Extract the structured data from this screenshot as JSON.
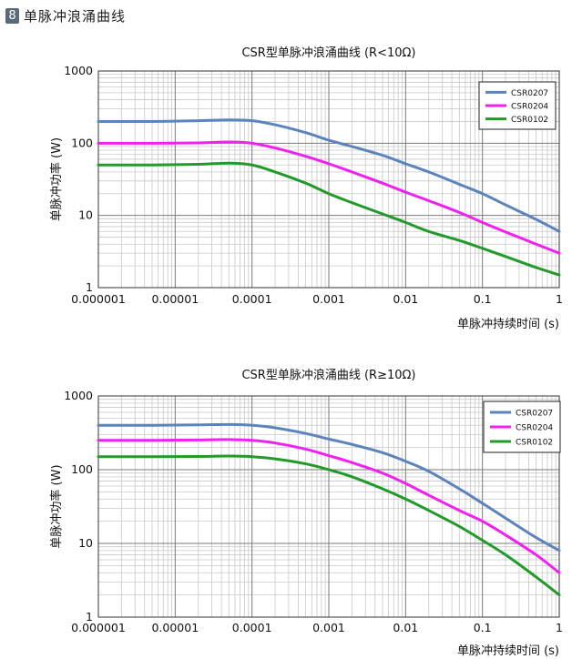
{
  "section": {
    "number": "8",
    "title": "单脉冲浪涌曲线"
  },
  "chart_data": [
    {
      "type": "line",
      "title": "CSR型单脉冲浪涌曲线 (R<10Ω)",
      "xlabel": "单脉冲持续时间 (s)",
      "ylabel": "单脉冲功率 (W)",
      "xscale": "log",
      "yscale": "log",
      "xlim": [
        1e-06,
        1
      ],
      "ylim": [
        1,
        1000
      ],
      "x_ticks": [
        "0.000001",
        "0.00001",
        "0.0001",
        "0.001",
        "0.01",
        "0.1",
        "1"
      ],
      "y_ticks": [
        "1",
        "10",
        "100",
        "1000"
      ],
      "grid": true,
      "legend_position": "top-right",
      "series": [
        {
          "name": "CSR0207",
          "color": "#5b84bd",
          "x": [
            1e-06,
            5e-06,
            2e-05,
            5e-05,
            0.0001,
            0.0002,
            0.0005,
            0.001,
            0.002,
            0.005,
            0.01,
            0.02,
            0.05,
            0.1,
            0.2,
            0.5,
            1
          ],
          "y": [
            200,
            200,
            205,
            210,
            205,
            180,
            140,
            110,
            90,
            68,
            52,
            40,
            27,
            20,
            14,
            8.8,
            6
          ]
        },
        {
          "name": "CSR0204",
          "color": "#f021f0",
          "x": [
            1e-06,
            5e-06,
            2e-05,
            5e-05,
            0.0001,
            0.0002,
            0.0005,
            0.001,
            0.002,
            0.005,
            0.01,
            0.02,
            0.05,
            0.1,
            0.2,
            0.5,
            1
          ],
          "y": [
            100,
            100,
            101,
            104,
            100,
            86,
            66,
            52,
            40,
            28,
            21,
            16,
            11,
            8,
            5.9,
            4,
            3
          ]
        },
        {
          "name": "CSR0102",
          "color": "#229a2a",
          "x": [
            1e-06,
            5e-06,
            2e-05,
            5e-05,
            0.0001,
            0.0002,
            0.0005,
            0.001,
            0.002,
            0.005,
            0.01,
            0.02,
            0.05,
            0.1,
            0.2,
            0.5,
            1
          ],
          "y": [
            50,
            50,
            51,
            53,
            50,
            40,
            28,
            20,
            15,
            10.5,
            8,
            6,
            4.5,
            3.5,
            2.7,
            1.9,
            1.5
          ]
        }
      ]
    },
    {
      "type": "line",
      "title": "CSR型单脉冲浪涌曲线 (R≥10Ω)",
      "xlabel": "单脉冲持续时间 (s)",
      "ylabel": "单脉冲功率 (W)",
      "xscale": "log",
      "yscale": "log",
      "xlim": [
        1e-06,
        1
      ],
      "ylim": [
        1,
        1000
      ],
      "x_ticks": [
        "0.000001",
        "0.00001",
        "0.0001",
        "0.001",
        "0.01",
        "0.1",
        "1"
      ],
      "y_ticks": [
        "1",
        "10",
        "100",
        "1000"
      ],
      "grid": true,
      "legend_position": "top-right",
      "series": [
        {
          "name": "CSR0207",
          "color": "#5b84bd",
          "x": [
            1e-06,
            5e-06,
            2e-05,
            5e-05,
            0.0001,
            0.0002,
            0.0005,
            0.001,
            0.002,
            0.005,
            0.01,
            0.02,
            0.05,
            0.1,
            0.2,
            0.5,
            1
          ],
          "y": [
            400,
            400,
            405,
            410,
            400,
            370,
            310,
            260,
            220,
            170,
            130,
            95,
            55,
            35,
            22,
            12,
            8
          ]
        },
        {
          "name": "CSR0204",
          "color": "#f021f0",
          "x": [
            1e-06,
            5e-06,
            2e-05,
            5e-05,
            0.0001,
            0.0002,
            0.0005,
            0.001,
            0.002,
            0.005,
            0.01,
            0.02,
            0.05,
            0.1,
            0.2,
            0.5,
            1
          ],
          "y": [
            250,
            250,
            253,
            256,
            250,
            230,
            190,
            155,
            125,
            90,
            65,
            45,
            28,
            20,
            13,
            7,
            4
          ]
        },
        {
          "name": "CSR0102",
          "color": "#229a2a",
          "x": [
            1e-06,
            5e-06,
            2e-05,
            5e-05,
            0.0001,
            0.0002,
            0.0005,
            0.001,
            0.002,
            0.005,
            0.01,
            0.02,
            0.05,
            0.1,
            0.2,
            0.5,
            1
          ],
          "y": [
            150,
            150,
            151,
            153,
            150,
            140,
            120,
            100,
            80,
            55,
            40,
            28,
            17,
            11,
            7,
            3.5,
            2
          ]
        }
      ]
    }
  ]
}
